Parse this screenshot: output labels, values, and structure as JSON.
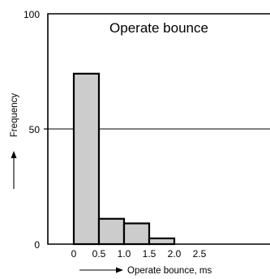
{
  "chart_data": {
    "type": "bar",
    "title": "Operate bounce",
    "xlabel": "Operate bounce, ms",
    "ylabel": "Frequency",
    "x_tick_labels": [
      "0",
      "0.5",
      "1.0",
      "1.5",
      "2.0",
      "2.5"
    ],
    "x_ticks": [
      0,
      0.5,
      1.0,
      1.5,
      2.0,
      2.5
    ],
    "y_tick_labels": [
      "0",
      "50",
      "100"
    ],
    "y_ticks": [
      0,
      50,
      100
    ],
    "ylim": [
      0,
      100
    ],
    "bins": [
      {
        "start": 0,
        "end": 0.5,
        "value": 74
      },
      {
        "start": 0.5,
        "end": 1.0,
        "value": 11
      },
      {
        "start": 1.0,
        "end": 1.5,
        "value": 9
      },
      {
        "start": 1.5,
        "end": 2.0,
        "value": 2.5
      }
    ],
    "reference_line_y": 50,
    "bar_fill": "#cccccc",
    "bar_stroke": "#000000"
  }
}
